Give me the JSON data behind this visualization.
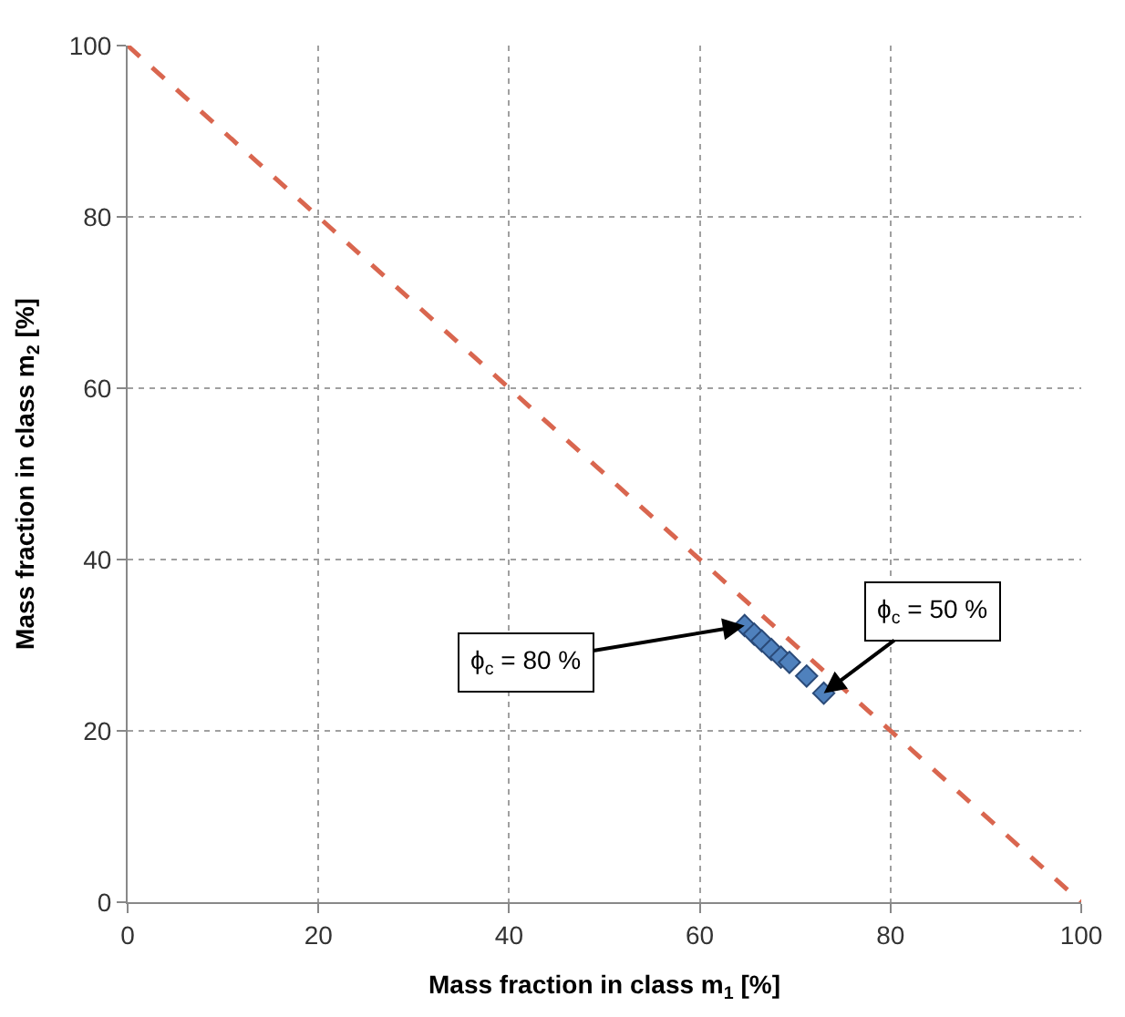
{
  "chart_data": {
    "type": "scatter",
    "xlabel": "Mass fraction in class m$_{1}$ [%]",
    "ylabel": "Mass fraction in class m$_{2}$ [%]",
    "xlim": [
      0,
      100
    ],
    "ylim": [
      0,
      100
    ],
    "xticks": [
      0,
      20,
      40,
      60,
      80,
      100
    ],
    "yticks": [
      0,
      20,
      40,
      60,
      80,
      100
    ],
    "grid": true,
    "series": [
      {
        "type": "line",
        "color": "#d9664f",
        "line_style": "dashed",
        "marker": "none",
        "x": [
          0,
          100
        ],
        "values": [
          100,
          0
        ]
      },
      {
        "color": "#4f81bd",
        "marker": "diamond",
        "x": [
          64.7,
          65.7,
          66.5,
          67.5,
          68.5,
          69.4,
          71.2,
          73.0
        ],
        "values": [
          32.3,
          31.3,
          30.5,
          29.5,
          28.6,
          28.0,
          26.4,
          24.4
        ]
      }
    ],
    "annotations": [
      {
        "text": "ϕ$_{c}$ = 80 %",
        "x": 64.7,
        "y": 32.3
      },
      {
        "text": "ϕ$_{c}$ = 50 %",
        "x": 73.0,
        "y": 24.4
      }
    ]
  }
}
